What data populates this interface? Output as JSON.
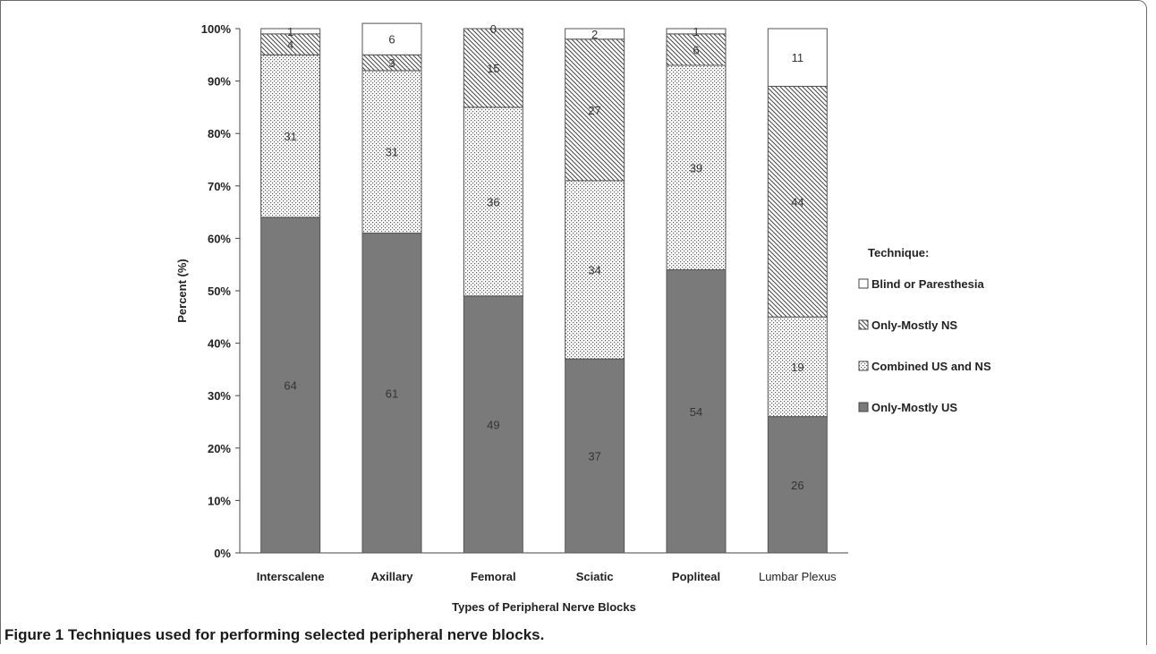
{
  "caption": {
    "label": "Figure 1",
    "text": "Techniques used for performing selected peripheral nerve blocks."
  },
  "chart_data": {
    "type": "bar",
    "stacked": true,
    "percent_stacked": true,
    "categories": [
      "Interscalene",
      "Axillary",
      "Femoral",
      "Sciatic",
      "Popliteal",
      "Lumbar Plexus"
    ],
    "series": [
      {
        "name": "Only-Mostly US",
        "values": [
          64,
          61,
          49,
          37,
          54,
          26
        ],
        "pattern": "solid",
        "color": "#7a7a7a"
      },
      {
        "name": "Combined US and NS",
        "values": [
          31,
          31,
          36,
          34,
          39,
          19
        ],
        "pattern": "dots",
        "color": "#ffffff"
      },
      {
        "name": "Only-Mostly NS",
        "values": [
          4,
          3,
          15,
          27,
          6,
          44
        ],
        "pattern": "diagonal",
        "color": "#ffffff"
      },
      {
        "name": "Blind or Paresthesia",
        "values": [
          1,
          6,
          0,
          2,
          1,
          11
        ],
        "pattern": "none",
        "color": "#ffffff"
      }
    ],
    "data_labels": [
      [
        "64",
        "61",
        "49",
        "37",
        "54",
        "26"
      ],
      [
        "31",
        "31",
        "36",
        "34",
        "39",
        "19"
      ],
      [
        "4",
        "3",
        "15",
        "27",
        "6",
        "44"
      ],
      [
        "1",
        "6",
        "0",
        "2",
        "1",
        "11"
      ]
    ],
    "xlabel": "Types of Peripheral Nerve Blocks",
    "ylabel": "Percent (%)",
    "y_ticks": [
      "0%",
      "10%",
      "20%",
      "30%",
      "40%",
      "50%",
      "60%",
      "70%",
      "80%",
      "90%",
      "100%"
    ],
    "ylim": [
      0,
      100
    ],
    "legend_title": "Technique:",
    "legend_position": "right",
    "legend_order": [
      "Blind or Paresthesia",
      "Only-Mostly NS",
      "Combined US and NS",
      "Only-Mostly US"
    ],
    "grid": false
  }
}
